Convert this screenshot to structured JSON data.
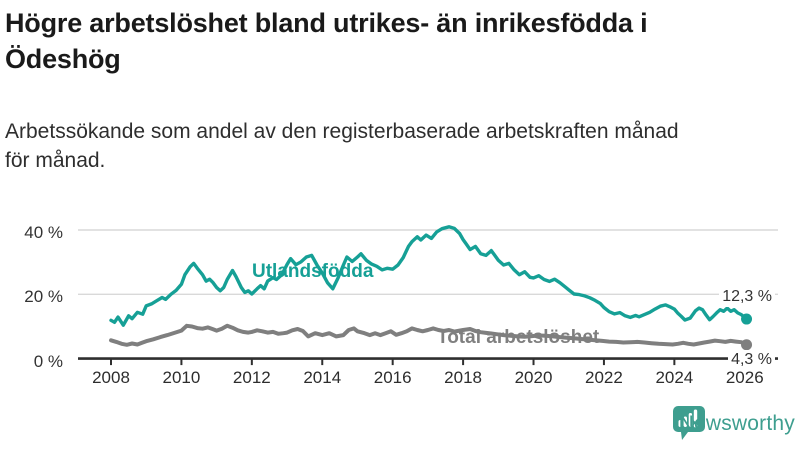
{
  "header": {
    "title_lines": [
      "Högre arbetslöshet bland utrikes- än inrikesfödda i",
      "Ödeshög"
    ],
    "subtitle_lines": [
      "Arbetssökande som andel av den registerbaserade arbetskraften månad",
      "för månad."
    ]
  },
  "chart_data": {
    "type": "line",
    "title": "Högre arbetslöshet bland utrikes- än inrikesfödda i Ödeshög",
    "subtitle": "Arbetssökande som andel av den registerbaserade arbetskraften månad för månad.",
    "xlabel": "",
    "ylabel": "",
    "x_unit": "year (monthly data)",
    "y_unit": "percent",
    "xlim": [
      2007.1,
      2027.0
    ],
    "ylim": [
      0,
      44
    ],
    "grid": "horizontal-only",
    "legend": "inline-labels",
    "axis_color": "#2f2f2f",
    "grid_color": "#d9d9d9",
    "yticks": [
      {
        "value": 0,
        "label": "0 %"
      },
      {
        "value": 20,
        "label": "20 %"
      },
      {
        "value": 40,
        "label": "40 %"
      }
    ],
    "xticks": [
      {
        "value": 2008,
        "label": "2008"
      },
      {
        "value": 2010,
        "label": "2010"
      },
      {
        "value": 2012,
        "label": "2012"
      },
      {
        "value": 2014,
        "label": "2014"
      },
      {
        "value": 2016,
        "label": "2016"
      },
      {
        "value": 2018,
        "label": "2018"
      },
      {
        "value": 2020,
        "label": "2020"
      },
      {
        "value": 2022,
        "label": "2022"
      },
      {
        "value": 2024,
        "label": "2024"
      },
      {
        "value": 2026,
        "label": "2026"
      }
    ],
    "series": [
      {
        "name": "Utlandsfödda",
        "color": "#16a096",
        "line_width": 3.4,
        "end_value": 12.3,
        "end_label": "12,3 %",
        "points": [
          [
            2008.0,
            11.9
          ],
          [
            2008.1,
            11.3
          ],
          [
            2008.2,
            12.9
          ],
          [
            2008.35,
            10.4
          ],
          [
            2008.5,
            13.3
          ],
          [
            2008.6,
            12.4
          ],
          [
            2008.75,
            14.4
          ],
          [
            2008.9,
            13.8
          ],
          [
            2009.0,
            16.4
          ],
          [
            2009.15,
            17.0
          ],
          [
            2009.3,
            18.0
          ],
          [
            2009.45,
            19.0
          ],
          [
            2009.55,
            18.4
          ],
          [
            2009.7,
            20.0
          ],
          [
            2009.85,
            21.2
          ],
          [
            2010.0,
            23.1
          ],
          [
            2010.1,
            26.1
          ],
          [
            2010.25,
            28.6
          ],
          [
            2010.35,
            29.6
          ],
          [
            2010.45,
            28.1
          ],
          [
            2010.6,
            26.1
          ],
          [
            2010.7,
            24.1
          ],
          [
            2010.8,
            24.7
          ],
          [
            2010.9,
            23.6
          ],
          [
            2011.0,
            22.1
          ],
          [
            2011.1,
            21.1
          ],
          [
            2011.2,
            22.1
          ],
          [
            2011.3,
            24.6
          ],
          [
            2011.45,
            27.4
          ],
          [
            2011.55,
            25.5
          ],
          [
            2011.7,
            22.1
          ],
          [
            2011.8,
            20.6
          ],
          [
            2011.9,
            21.1
          ],
          [
            2012.0,
            20.1
          ],
          [
            2012.15,
            21.7
          ],
          [
            2012.25,
            22.7
          ],
          [
            2012.35,
            21.7
          ],
          [
            2012.45,
            24.1
          ],
          [
            2012.6,
            25.2
          ],
          [
            2012.7,
            24.6
          ],
          [
            2012.85,
            26.1
          ],
          [
            2013.0,
            29.3
          ],
          [
            2013.1,
            31.1
          ],
          [
            2013.25,
            29.2
          ],
          [
            2013.4,
            30.1
          ],
          [
            2013.55,
            31.6
          ],
          [
            2013.7,
            32.1
          ],
          [
            2013.85,
            29.1
          ],
          [
            2014.0,
            26.6
          ],
          [
            2014.15,
            23.6
          ],
          [
            2014.3,
            21.7
          ],
          [
            2014.45,
            25.1
          ],
          [
            2014.6,
            29.1
          ],
          [
            2014.7,
            31.6
          ],
          [
            2014.85,
            30.2
          ],
          [
            2015.0,
            31.6
          ],
          [
            2015.1,
            32.6
          ],
          [
            2015.25,
            30.6
          ],
          [
            2015.4,
            29.4
          ],
          [
            2015.55,
            28.7
          ],
          [
            2015.7,
            27.6
          ],
          [
            2015.85,
            28.1
          ],
          [
            2016.0,
            27.8
          ],
          [
            2016.15,
            29.1
          ],
          [
            2016.3,
            31.4
          ],
          [
            2016.45,
            34.9
          ],
          [
            2016.55,
            36.4
          ],
          [
            2016.7,
            37.9
          ],
          [
            2016.8,
            36.9
          ],
          [
            2016.95,
            38.4
          ],
          [
            2017.1,
            37.4
          ],
          [
            2017.25,
            39.4
          ],
          [
            2017.4,
            40.4
          ],
          [
            2017.6,
            41.0
          ],
          [
            2017.75,
            40.5
          ],
          [
            2017.9,
            38.9
          ],
          [
            2018.0,
            37.0
          ],
          [
            2018.1,
            35.5
          ],
          [
            2018.2,
            33.9
          ],
          [
            2018.35,
            34.9
          ],
          [
            2018.5,
            32.6
          ],
          [
            2018.65,
            32.1
          ],
          [
            2018.8,
            33.6
          ],
          [
            2018.9,
            32.1
          ],
          [
            2019.0,
            30.6
          ],
          [
            2019.15,
            29.1
          ],
          [
            2019.3,
            29.6
          ],
          [
            2019.45,
            27.6
          ],
          [
            2019.6,
            26.1
          ],
          [
            2019.75,
            27.0
          ],
          [
            2019.9,
            25.3
          ],
          [
            2020.0,
            25.1
          ],
          [
            2020.15,
            25.8
          ],
          [
            2020.3,
            24.6
          ],
          [
            2020.45,
            24.0
          ],
          [
            2020.6,
            24.7
          ],
          [
            2020.75,
            23.6
          ],
          [
            2020.9,
            22.3
          ],
          [
            2021.0,
            21.4
          ],
          [
            2021.15,
            20.1
          ],
          [
            2021.3,
            19.9
          ],
          [
            2021.45,
            19.5
          ],
          [
            2021.6,
            18.9
          ],
          [
            2021.75,
            18.1
          ],
          [
            2021.9,
            17.1
          ],
          [
            2022.0,
            15.9
          ],
          [
            2022.15,
            14.6
          ],
          [
            2022.3,
            13.9
          ],
          [
            2022.45,
            14.3
          ],
          [
            2022.6,
            13.3
          ],
          [
            2022.75,
            12.8
          ],
          [
            2022.9,
            13.4
          ],
          [
            2023.0,
            13.0
          ],
          [
            2023.15,
            13.7
          ],
          [
            2023.3,
            14.4
          ],
          [
            2023.45,
            15.4
          ],
          [
            2023.6,
            16.3
          ],
          [
            2023.75,
            16.7
          ],
          [
            2023.9,
            16.0
          ],
          [
            2024.0,
            15.4
          ],
          [
            2024.1,
            14.1
          ],
          [
            2024.2,
            13.1
          ],
          [
            2024.3,
            12.0
          ],
          [
            2024.45,
            12.6
          ],
          [
            2024.6,
            14.9
          ],
          [
            2024.7,
            15.7
          ],
          [
            2024.8,
            15.2
          ],
          [
            2024.9,
            13.6
          ],
          [
            2025.0,
            12.1
          ],
          [
            2025.1,
            13.1
          ],
          [
            2025.2,
            14.2
          ],
          [
            2025.3,
            15.2
          ],
          [
            2025.4,
            14.7
          ],
          [
            2025.5,
            15.7
          ],
          [
            2025.6,
            14.7
          ],
          [
            2025.7,
            15.2
          ],
          [
            2025.8,
            14.2
          ],
          [
            2025.9,
            13.7
          ],
          [
            2026.0,
            12.7
          ],
          [
            2026.05,
            12.3
          ]
        ]
      },
      {
        "name": "Total arbetslöshet",
        "color": "#7f7f7f",
        "line_width": 4,
        "end_value": 4.3,
        "end_label": "4,3 %",
        "points": [
          [
            2008.0,
            5.7
          ],
          [
            2008.15,
            5.2
          ],
          [
            2008.3,
            4.6
          ],
          [
            2008.45,
            4.3
          ],
          [
            2008.6,
            4.7
          ],
          [
            2008.75,
            4.4
          ],
          [
            2008.9,
            5.0
          ],
          [
            2009.0,
            5.4
          ],
          [
            2009.2,
            6.0
          ],
          [
            2009.4,
            6.7
          ],
          [
            2009.6,
            7.3
          ],
          [
            2009.8,
            8.0
          ],
          [
            2010.0,
            8.7
          ],
          [
            2010.15,
            10.2
          ],
          [
            2010.3,
            10.0
          ],
          [
            2010.45,
            9.5
          ],
          [
            2010.6,
            9.3
          ],
          [
            2010.75,
            9.7
          ],
          [
            2010.9,
            9.1
          ],
          [
            2011.0,
            8.7
          ],
          [
            2011.15,
            9.3
          ],
          [
            2011.3,
            10.2
          ],
          [
            2011.45,
            9.6
          ],
          [
            2011.6,
            8.8
          ],
          [
            2011.75,
            8.3
          ],
          [
            2011.9,
            8.1
          ],
          [
            2012.0,
            8.3
          ],
          [
            2012.15,
            8.8
          ],
          [
            2012.3,
            8.5
          ],
          [
            2012.45,
            8.1
          ],
          [
            2012.6,
            8.3
          ],
          [
            2012.75,
            7.7
          ],
          [
            2012.9,
            7.9
          ],
          [
            2013.0,
            8.1
          ],
          [
            2013.15,
            8.8
          ],
          [
            2013.3,
            9.2
          ],
          [
            2013.45,
            8.6
          ],
          [
            2013.6,
            6.9
          ],
          [
            2013.8,
            7.9
          ],
          [
            2014.0,
            7.3
          ],
          [
            2014.2,
            7.9
          ],
          [
            2014.4,
            6.9
          ],
          [
            2014.6,
            7.3
          ],
          [
            2014.75,
            8.9
          ],
          [
            2014.9,
            9.4
          ],
          [
            2015.0,
            8.5
          ],
          [
            2015.2,
            7.9
          ],
          [
            2015.35,
            7.3
          ],
          [
            2015.5,
            7.9
          ],
          [
            2015.65,
            7.3
          ],
          [
            2015.8,
            7.9
          ],
          [
            2015.95,
            8.5
          ],
          [
            2016.1,
            7.4
          ],
          [
            2016.25,
            7.9
          ],
          [
            2016.4,
            8.5
          ],
          [
            2016.55,
            9.4
          ],
          [
            2016.7,
            8.9
          ],
          [
            2016.85,
            8.5
          ],
          [
            2017.0,
            8.9
          ],
          [
            2017.15,
            9.4
          ],
          [
            2017.3,
            8.9
          ],
          [
            2017.45,
            8.6
          ],
          [
            2017.6,
            8.9
          ],
          [
            2017.75,
            8.4
          ],
          [
            2017.9,
            8.7
          ],
          [
            2018.0,
            8.9
          ],
          [
            2018.2,
            9.2
          ],
          [
            2018.35,
            8.6
          ],
          [
            2018.5,
            8.2
          ],
          [
            2018.65,
            8.0
          ],
          [
            2018.8,
            7.8
          ],
          [
            2018.95,
            7.6
          ],
          [
            2019.15,
            7.3
          ],
          [
            2019.35,
            7.1
          ],
          [
            2019.55,
            6.9
          ],
          [
            2019.75,
            6.8
          ],
          [
            2019.95,
            7.0
          ],
          [
            2020.15,
            7.2
          ],
          [
            2020.35,
            7.1
          ],
          [
            2020.55,
            6.9
          ],
          [
            2020.75,
            6.7
          ],
          [
            2020.95,
            6.5
          ],
          [
            2021.15,
            6.3
          ],
          [
            2021.35,
            6.1
          ],
          [
            2021.55,
            5.9
          ],
          [
            2021.75,
            5.7
          ],
          [
            2021.95,
            5.5
          ],
          [
            2022.15,
            5.3
          ],
          [
            2022.35,
            5.2
          ],
          [
            2022.55,
            5.0
          ],
          [
            2022.75,
            5.1
          ],
          [
            2022.95,
            5.2
          ],
          [
            2023.15,
            5.0
          ],
          [
            2023.35,
            4.8
          ],
          [
            2023.55,
            4.6
          ],
          [
            2023.75,
            4.5
          ],
          [
            2023.95,
            4.4
          ],
          [
            2024.1,
            4.6
          ],
          [
            2024.25,
            4.9
          ],
          [
            2024.4,
            4.6
          ],
          [
            2024.55,
            4.4
          ],
          [
            2024.7,
            4.7
          ],
          [
            2024.85,
            5.0
          ],
          [
            2025.0,
            5.3
          ],
          [
            2025.15,
            5.6
          ],
          [
            2025.3,
            5.4
          ],
          [
            2025.45,
            5.2
          ],
          [
            2025.6,
            5.5
          ],
          [
            2025.75,
            5.3
          ],
          [
            2025.9,
            5.1
          ],
          [
            2026.0,
            4.6
          ],
          [
            2026.05,
            4.3
          ]
        ]
      }
    ]
  },
  "branding": {
    "logo_text": "Newsworthy",
    "logo_color": "#3e9e8f"
  }
}
